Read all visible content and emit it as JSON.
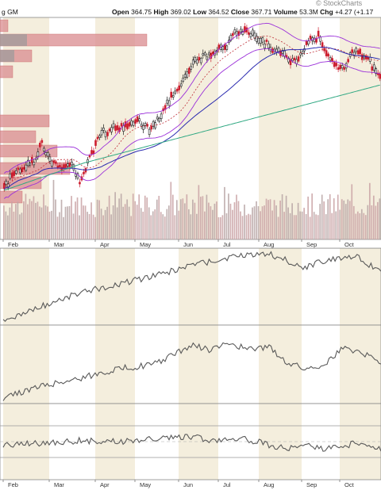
{
  "header": {
    "source": "© StockCharts",
    "symbol_suffix": "g GM",
    "quote": [
      {
        "label": "Open",
        "value": "364.75"
      },
      {
        "label": "High",
        "value": "369.02"
      },
      {
        "label": "Low",
        "value": "364.52"
      },
      {
        "label": "Close",
        "value": "367.71"
      },
      {
        "label": "Volume",
        "value": "53.3M"
      },
      {
        "label": "Chg",
        "value": "+4.27 (+1.17"
      }
    ]
  },
  "colors": {
    "up": "#1a1a1a",
    "down": "#cc1e2f",
    "bands": "#9b30d9",
    "ma_short": "#2b2bb0",
    "ma_long": "#2fa882",
    "ma_dot": "#c0303a",
    "vbp": "#d98b8f",
    "volume": "#b9a6a6",
    "indicator": "#595959",
    "panel_alt": "#f4eedd"
  },
  "chart_data": [
    {
      "type": "candlestick",
      "x_labels": [
        "Feb",
        "Mar",
        "Apr",
        "May",
        "Jun",
        "Jul",
        "Aug",
        "Sep",
        "Oct"
      ],
      "overlays": [
        "price bands",
        "moving averages",
        "volume-by-price",
        "volume bars"
      ],
      "price_path": [
        [
          0,
          236
        ],
        [
          0.04,
          212
        ],
        [
          0.08,
          205
        ],
        [
          0.1,
          180
        ],
        [
          0.12,
          198
        ],
        [
          0.15,
          215
        ],
        [
          0.18,
          203
        ],
        [
          0.2,
          230
        ],
        [
          0.23,
          196
        ],
        [
          0.26,
          168
        ],
        [
          0.29,
          162
        ],
        [
          0.33,
          160
        ],
        [
          0.36,
          152
        ],
        [
          0.39,
          165
        ],
        [
          0.42,
          142
        ],
        [
          0.45,
          118
        ],
        [
          0.5,
          82
        ],
        [
          0.53,
          72
        ],
        [
          0.56,
          64
        ],
        [
          0.59,
          62
        ],
        [
          0.62,
          38
        ],
        [
          0.66,
          44
        ],
        [
          0.7,
          56
        ],
        [
          0.73,
          65
        ],
        [
          0.77,
          80
        ],
        [
          0.81,
          50
        ],
        [
          0.84,
          46
        ],
        [
          0.87,
          78
        ],
        [
          0.9,
          88
        ],
        [
          0.93,
          64
        ],
        [
          0.96,
          70
        ],
        [
          1.0,
          96
        ]
      ]
    },
    {
      "type": "line",
      "indicator_path": [
        [
          0,
          74
        ],
        [
          0.1,
          42
        ],
        [
          0.2,
          14
        ],
        [
          0.3,
          -5
        ],
        [
          0.4,
          -22
        ],
        [
          0.5,
          -45
        ],
        [
          0.6,
          -60
        ],
        [
          0.65,
          -67
        ],
        [
          0.7,
          -70
        ],
        [
          0.75,
          -55
        ],
        [
          0.8,
          -40
        ],
        [
          0.86,
          -58
        ],
        [
          0.9,
          -60
        ],
        [
          0.94,
          -62
        ],
        [
          1.0,
          -30
        ]
      ]
    },
    {
      "type": "line",
      "indicator_path": [
        [
          0,
          70
        ],
        [
          0.1,
          46
        ],
        [
          0.2,
          30
        ],
        [
          0.3,
          10
        ],
        [
          0.4,
          0
        ],
        [
          0.5,
          -40
        ],
        [
          0.55,
          -30
        ],
        [
          0.6,
          -45
        ],
        [
          0.65,
          -30
        ],
        [
          0.7,
          -38
        ],
        [
          0.75,
          -5
        ],
        [
          0.8,
          10
        ],
        [
          0.85,
          0
        ],
        [
          0.9,
          -35
        ],
        [
          0.95,
          -25
        ],
        [
          1.0,
          -5
        ]
      ]
    },
    {
      "type": "line",
      "indicator_path": [
        [
          0,
          6
        ],
        [
          0.1,
          4
        ],
        [
          0.2,
          -2
        ],
        [
          0.3,
          0
        ],
        [
          0.4,
          -6
        ],
        [
          0.45,
          -8
        ],
        [
          0.5,
          -10
        ],
        [
          0.55,
          -2
        ],
        [
          0.6,
          -8
        ],
        [
          0.65,
          -4
        ],
        [
          0.7,
          6
        ],
        [
          0.75,
          14
        ],
        [
          0.8,
          8
        ],
        [
          0.85,
          16
        ],
        [
          0.9,
          8
        ],
        [
          0.95,
          2
        ],
        [
          1.0,
          14
        ]
      ]
    }
  ]
}
